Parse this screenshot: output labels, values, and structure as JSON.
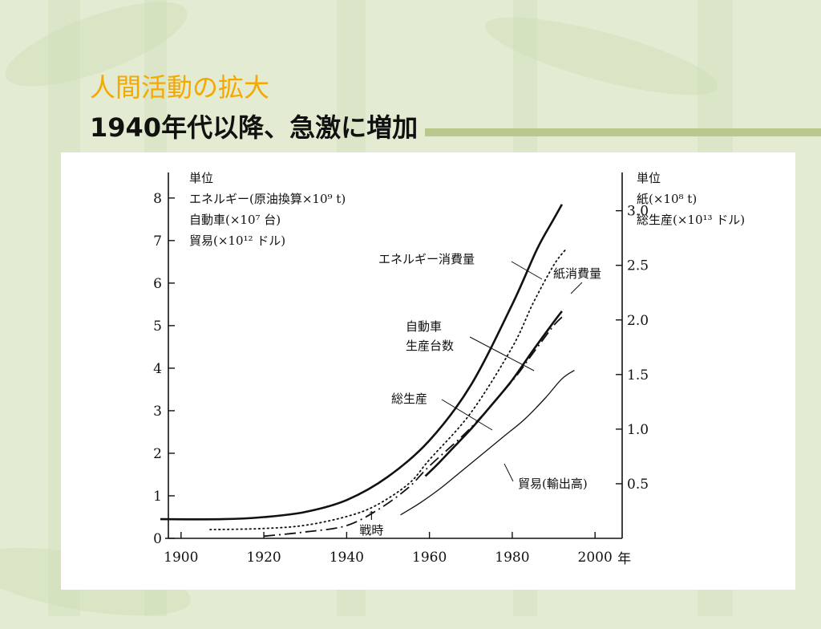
{
  "slide": {
    "title": "人間活動の拡大",
    "subtitle": "1940年代以降、急激に増加"
  },
  "colors": {
    "title": "#f5a800",
    "background": "#e3ecd2",
    "rule": "#b9c98d",
    "ink": "#111111"
  },
  "chart_data": {
    "type": "line",
    "left_axis": {
      "unit_lines": [
        "単位",
        "エネルギー(原油換算×10⁹ t)",
        "自動車(×10⁷ 台)",
        "貿易(×10¹² ドル)"
      ],
      "ylim": [
        0,
        8
      ],
      "ticks": [
        0,
        1,
        2,
        3,
        4,
        5,
        6,
        7,
        8
      ]
    },
    "right_axis": {
      "unit_lines": [
        "単位",
        "紙(×10⁸ t)",
        "総生産(×10¹³ ドル)"
      ],
      "ylim": [
        0,
        3.35
      ],
      "ticks": [
        0.5,
        1.0,
        1.5,
        2.0,
        2.5,
        3.0
      ],
      "tick_labels": [
        "0.5",
        "1.0",
        "1.5",
        "2.0",
        "2.5",
        "3.0"
      ]
    },
    "x_axis": {
      "xlim": [
        1895,
        2005
      ],
      "ticks": [
        1900,
        1920,
        1940,
        1960,
        1980,
        2000
      ],
      "unit": "年"
    },
    "annotation": {
      "label": "戦時",
      "arrow": "↑",
      "x": 1946,
      "y": 0.62
    },
    "series": [
      {
        "name": "エネルギー消費量",
        "axis": "left",
        "style": "solid-bold",
        "x": [
          1895,
          1910,
          1920,
          1930,
          1940,
          1950,
          1960,
          1970,
          1980,
          1986,
          1990,
          1992
        ],
        "y": [
          0.45,
          0.45,
          0.5,
          0.62,
          0.9,
          1.45,
          2.3,
          3.6,
          5.5,
          6.8,
          7.5,
          7.85
        ]
      },
      {
        "name": "紙消費量",
        "axis": "right",
        "style": "dotted",
        "x": [
          1907,
          1920,
          1930,
          1940,
          1947,
          1955,
          1960,
          1970,
          1980,
          1985,
          1990,
          1993
        ],
        "y": [
          0.08,
          0.09,
          0.12,
          0.2,
          0.3,
          0.5,
          0.72,
          1.15,
          1.75,
          2.15,
          2.5,
          2.65
        ]
      },
      {
        "name": "自動車\n生産台数",
        "axis": "left",
        "style": "dash-dot",
        "x": [
          1920,
          1930,
          1940,
          1948,
          1955,
          1960,
          1970,
          1980,
          1985,
          1990,
          1992
        ],
        "y": [
          0.05,
          0.15,
          0.3,
          0.7,
          1.2,
          1.7,
          2.6,
          3.7,
          4.35,
          5.0,
          5.2
        ]
      },
      {
        "name": "総生産",
        "axis": "right",
        "style": "solid-bold",
        "x": [
          1959,
          1962,
          1965,
          1970,
          1975,
          1980,
          1985,
          1990,
          1992
        ],
        "y": [
          0.57,
          0.68,
          0.8,
          1.0,
          1.22,
          1.45,
          1.72,
          1.98,
          2.08
        ]
      },
      {
        "name": "貿易(輸出高)",
        "axis": "left",
        "style": "solid-thin",
        "x": [
          1953,
          1958,
          1963,
          1968,
          1973,
          1978,
          1983,
          1988,
          1992,
          1995
        ],
        "y": [
          0.55,
          0.85,
          1.2,
          1.6,
          2.0,
          2.4,
          2.8,
          3.3,
          3.75,
          3.95
        ]
      }
    ]
  }
}
